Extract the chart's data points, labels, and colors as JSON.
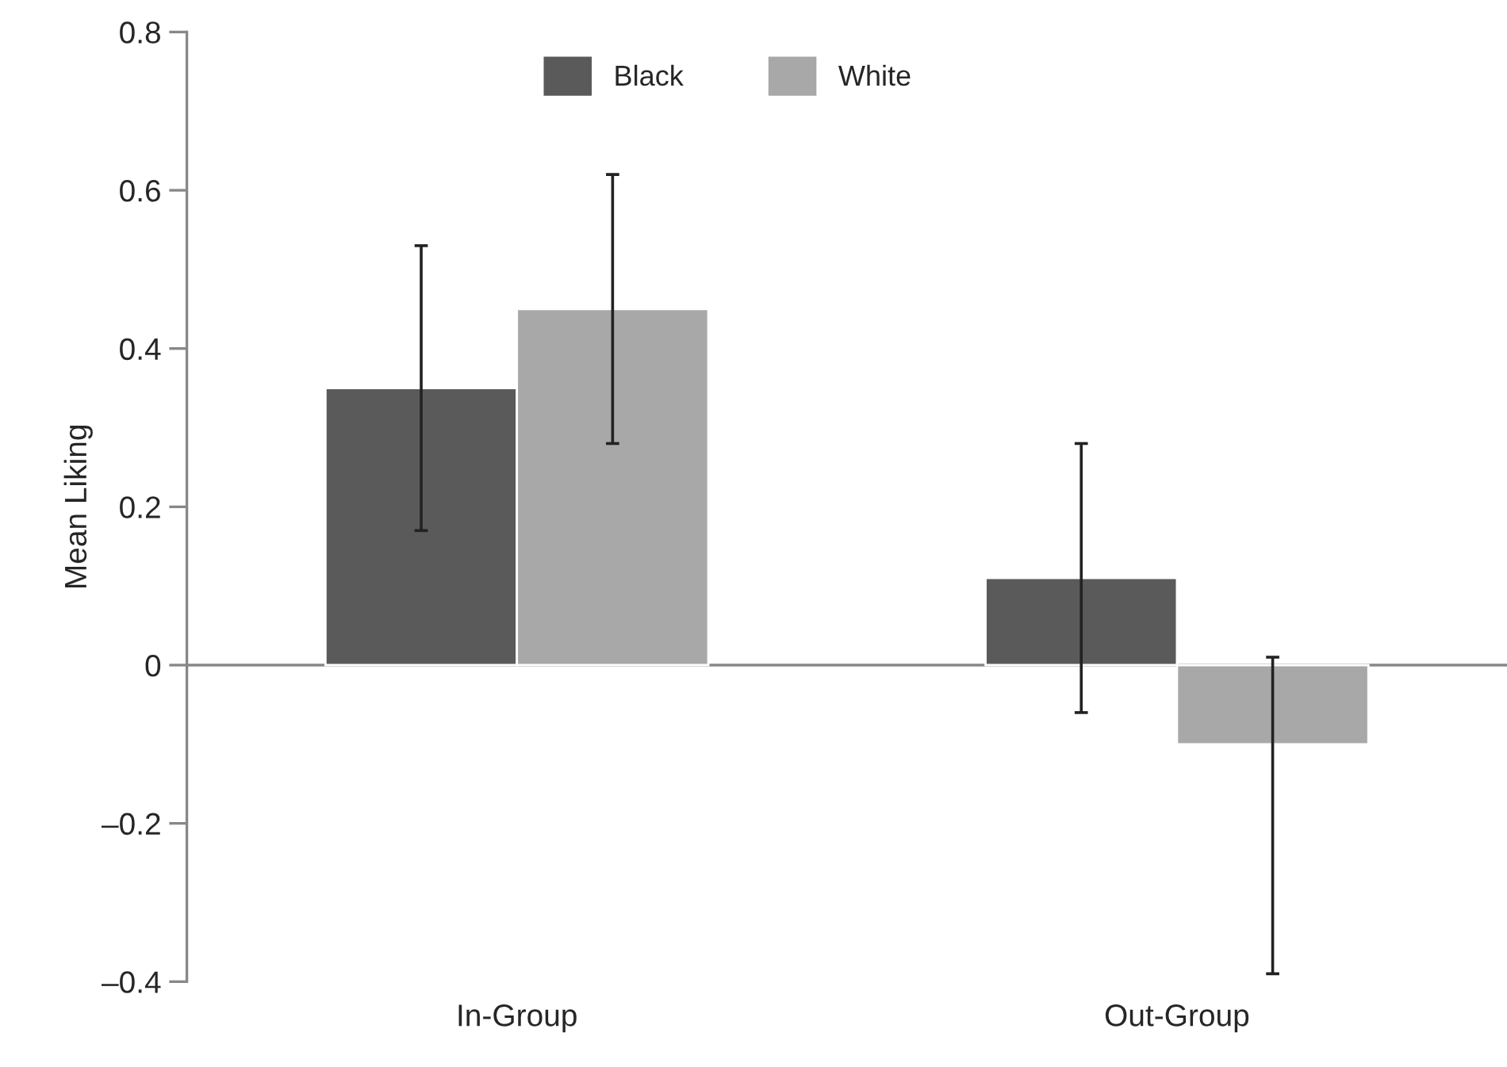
{
  "chart_data": {
    "type": "bar",
    "ylabel": "Mean Liking",
    "categories": [
      "In-Group",
      "Out-Group"
    ],
    "series": [
      {
        "name": "Black",
        "color": "#5a5a5a",
        "values": [
          0.35,
          0.11
        ],
        "errors": [
          [
            0.17,
            0.53
          ],
          [
            -0.06,
            0.28
          ]
        ]
      },
      {
        "name": "White",
        "color": "#a8a8a9",
        "values": [
          0.45,
          -0.1
        ],
        "errors": [
          [
            0.28,
            0.62
          ],
          [
            -0.39,
            0.01
          ]
        ]
      }
    ],
    "ylim": [
      -0.4,
      0.8
    ],
    "yticks": [
      {
        "value": -0.4,
        "label": "–0.4"
      },
      {
        "value": -0.2,
        "label": "–0.2"
      },
      0,
      0.2,
      0.4,
      0.6,
      0.8
    ],
    "ref_lines": [
      {
        "axis": "y",
        "value": 0,
        "color": "#888888"
      }
    ],
    "legend": "top",
    "grid": false
  }
}
